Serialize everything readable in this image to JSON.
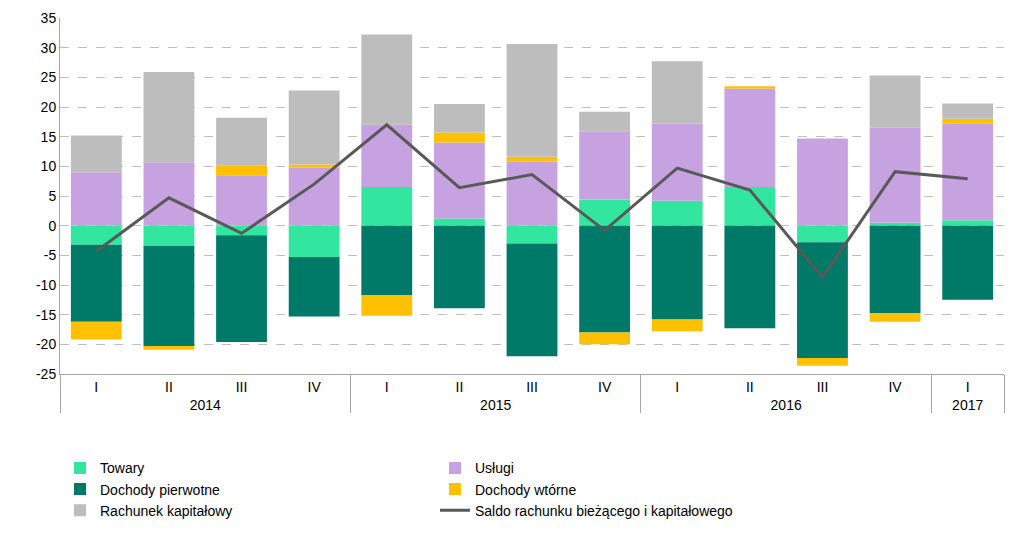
{
  "chart_data": {
    "type": "bar",
    "stacked": true,
    "grid": true,
    "legend": "bottom",
    "categories": [
      [
        "2014",
        "I"
      ],
      [
        "2014",
        "II"
      ],
      [
        "2014",
        "III"
      ],
      [
        "2014",
        "IV"
      ],
      [
        "2015",
        "I"
      ],
      [
        "2015",
        "II"
      ],
      [
        "2015",
        "III"
      ],
      [
        "2015",
        "IV"
      ],
      [
        "2016",
        "I"
      ],
      [
        "2016",
        "II"
      ],
      [
        "2016",
        "III"
      ],
      [
        "2016",
        "IV"
      ],
      [
        "2017",
        "I"
      ]
    ],
    "ylim": [
      -25,
      35
    ],
    "yticks": [
      -25,
      -20,
      -15,
      -10,
      -5,
      0,
      5,
      10,
      15,
      20,
      25,
      30,
      35
    ],
    "series": [
      {
        "name": "Towary",
        "color": "#33e6a0",
        "values": [
          -3.2,
          -3.4,
          -1.6,
          -5.3,
          6.5,
          1.2,
          -3.0,
          4.4,
          4.2,
          6.5,
          -2.8,
          0.5,
          0.9
        ]
      },
      {
        "name": "Usługi",
        "color": "#c6a3e0",
        "values": [
          9.0,
          10.7,
          8.5,
          9.8,
          10.5,
          12.8,
          10.8,
          11.5,
          13.0,
          16.6,
          14.7,
          16.0,
          16.3
        ]
      },
      {
        "name": "Dochody pierwotne",
        "color": "#007a68",
        "values": [
          -13.0,
          -16.9,
          -18.0,
          -10.0,
          -11.7,
          -13.9,
          -19.0,
          -18.0,
          -15.8,
          -17.3,
          -19.5,
          -14.7,
          -12.5
        ]
      },
      {
        "name": "Dochody wtórne",
        "color": "#ffc000",
        "values": [
          -3.0,
          -0.6,
          1.7,
          0.5,
          -3.5,
          1.7,
          0.8,
          -2.0,
          -2.0,
          0.4,
          -1.3,
          -1.5,
          0.8
        ]
      },
      {
        "name": "Rachunek kapitałowy",
        "color": "#bdbdbd",
        "values": [
          6.2,
          15.2,
          8.0,
          12.5,
          15.2,
          4.8,
          19.0,
          3.3,
          10.5,
          0.0,
          0.0,
          8.8,
          2.6
        ]
      },
      {
        "name": "Saldo rachunku bieżącego i kapitałowego",
        "color": "#595959",
        "type": "line",
        "values": [
          -4.3,
          4.7,
          -1.3,
          7.0,
          17.0,
          6.4,
          8.6,
          -0.8,
          9.7,
          6.0,
          -8.7,
          9.1,
          7.9
        ]
      }
    ]
  }
}
